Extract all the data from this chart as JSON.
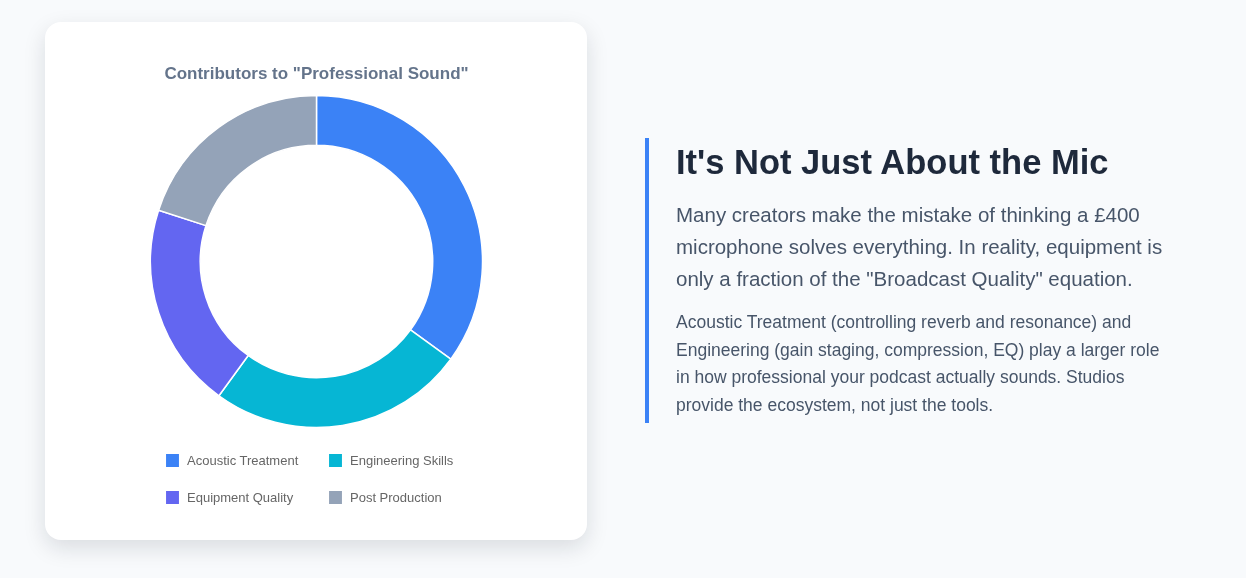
{
  "chart_data": {
    "type": "donut",
    "title": "Contributors to \"Professional Sound\"",
    "categories": [
      "Acoustic Treatment",
      "Engineering Skills",
      "Equipment Quality",
      "Post Production"
    ],
    "values": [
      35,
      25,
      20,
      20
    ],
    "colors": [
      "#3b82f6",
      "#06b6d4",
      "#6366f1",
      "#94a3b8"
    ],
    "legend": "bottom",
    "annotations": [
      "It's Not Just About the Mic",
      "Many creators make the mistake of thinking a £400 microphone solves everything. In reality, equipment is only a fraction of the \"Broadcast Quality\" equation.",
      "Acoustic Treatment (controlling reverb and resonance) and Engineering (gain staging, compression, EQ) play a larger role in how professional your podcast actually sounds. Studios provide the ecosystem, not just the tools."
    ]
  }
}
